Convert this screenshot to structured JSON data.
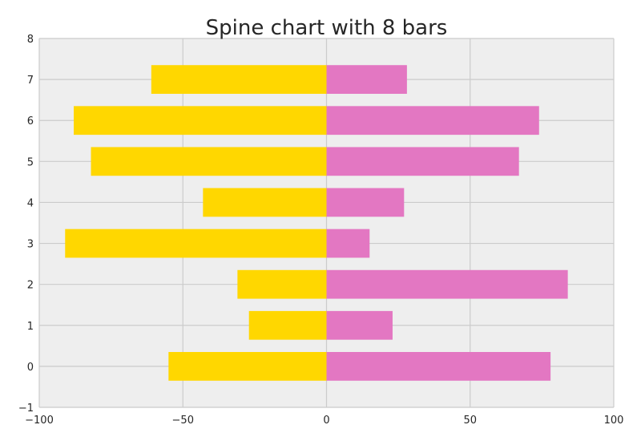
{
  "chart_data": {
    "type": "bar",
    "orientation": "horizontal",
    "title": "Spine chart with 8 bars",
    "xlabel": "",
    "ylabel": "",
    "categories": [
      0,
      1,
      2,
      3,
      4,
      5,
      6,
      7
    ],
    "series": [
      {
        "color": "#FFD700",
        "values": [
          -55,
          -27,
          -31,
          -91,
          -43,
          -82,
          -88,
          -61
        ]
      },
      {
        "color": "#E377C2",
        "values": [
          78,
          23,
          84,
          15,
          27,
          67,
          74,
          28
        ]
      }
    ],
    "xlim": [
      -100,
      100
    ],
    "ylim": [
      -1,
      8
    ],
    "xticks": [
      -100,
      -50,
      0,
      50,
      100
    ],
    "xtick_labels": [
      "−100",
      "−50",
      "0",
      "50",
      "100"
    ],
    "yticks": [
      -1,
      0,
      1,
      2,
      3,
      4,
      5,
      6,
      7,
      8
    ],
    "ytick_labels": [
      "−1",
      "0",
      "1",
      "2",
      "3",
      "4",
      "5",
      "6",
      "7",
      "8"
    ],
    "grid": true,
    "background": "#EEEEEE",
    "grid_color": "#CBCBCB"
  }
}
